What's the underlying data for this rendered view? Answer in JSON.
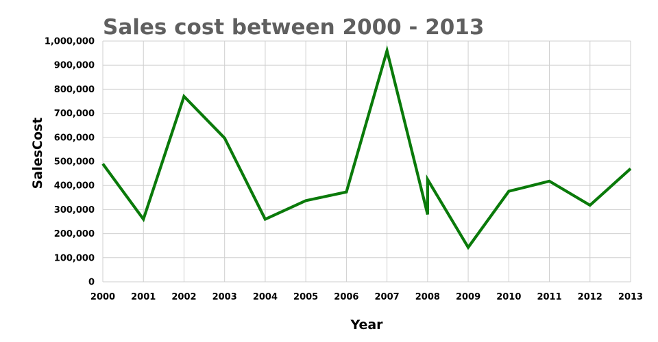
{
  "chart_data": {
    "type": "line",
    "title": "Sales cost between 2000 - 2013",
    "xlabel": "Year",
    "ylabel": "SalesCost",
    "x_ticks": [
      "2000",
      "2001",
      "2002",
      "2003",
      "2004",
      "2005",
      "2006",
      "2007",
      "2008",
      "2009",
      "2010",
      "2011",
      "2012",
      "2013"
    ],
    "y_ticks": [
      "0",
      "100,000",
      "200,000",
      "300,000",
      "400,000",
      "500,000",
      "600,000",
      "700,000",
      "800,000",
      "900,000",
      "1,000,000"
    ],
    "xlim": [
      2000,
      2013
    ],
    "ylim": [
      0,
      1000000
    ],
    "grid": true,
    "legend": "none",
    "series": [
      {
        "color": "#0a7a0a",
        "points": [
          {
            "x": 2000,
            "y": 490000
          },
          {
            "x": 2001,
            "y": 260000
          },
          {
            "x": 2002,
            "y": 770000
          },
          {
            "x": 2003,
            "y": 597000
          },
          {
            "x": 2004,
            "y": 260000
          },
          {
            "x": 2005,
            "y": 337000
          },
          {
            "x": 2006,
            "y": 373000
          },
          {
            "x": 2007,
            "y": 960000
          },
          {
            "x": 2008,
            "y": 280000
          },
          {
            "x": 2008,
            "y": 425000
          },
          {
            "x": 2009,
            "y": 143000
          },
          {
            "x": 2010,
            "y": 376000
          },
          {
            "x": 2011,
            "y": 418000
          },
          {
            "x": 2012,
            "y": 318000
          },
          {
            "x": 2013,
            "y": 470000
          }
        ]
      }
    ]
  }
}
